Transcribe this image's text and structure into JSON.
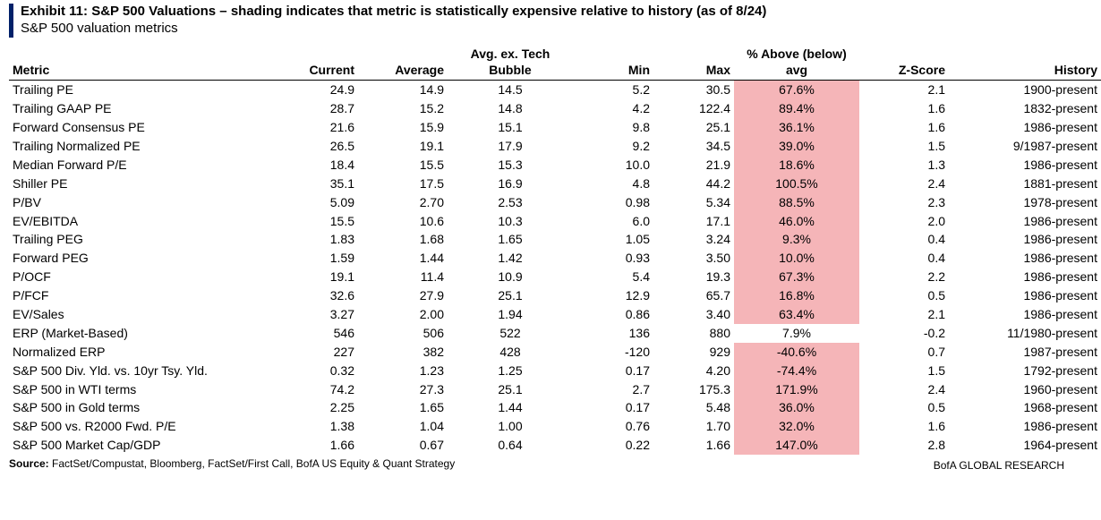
{
  "title": "Exhibit 11: S&P 500 Valuations – shading indicates that metric is statistically expensive relative to history (as of 8/24)",
  "subtitle": "S&P 500 valuation metrics",
  "columns": {
    "metric": "Metric",
    "current": "Current",
    "avg": "Average",
    "exbubble_line1": "Avg. ex. Tech",
    "exbubble_line2": "Bubble",
    "min": "Min",
    "max": "Max",
    "pctabove_line1": "% Above (below)",
    "pctabove_line2": "avg",
    "zscore": "Z-Score",
    "history": "History"
  },
  "colors": {
    "accent_bar": "#012169",
    "shaded_bg": "#f5b5b8",
    "text": "#000000",
    "background": "#ffffff"
  },
  "source_label": "Source:",
  "source_text": "FactSet/Compustat, Bloomberg, FactSet/First Call, BofA US Equity & Quant Strategy",
  "brand": "BofA GLOBAL RESEARCH",
  "rows": [
    {
      "metric": "Trailing PE",
      "current": "24.9",
      "avg": "14.9",
      "exbubble": "14.5",
      "min": "5.2",
      "max": "30.5",
      "pctabove": "67.6%",
      "pctabove_shaded": true,
      "zscore": "2.1",
      "history": "1900-present"
    },
    {
      "metric": "Trailing GAAP PE",
      "current": "28.7",
      "avg": "15.2",
      "exbubble": "14.8",
      "min": "4.2",
      "max": "122.4",
      "pctabove": "89.4%",
      "pctabove_shaded": true,
      "zscore": "1.6",
      "history": "1832-present"
    },
    {
      "metric": "Forward Consensus PE",
      "current": "21.6",
      "avg": "15.9",
      "exbubble": "15.1",
      "min": "9.8",
      "max": "25.1",
      "pctabove": "36.1%",
      "pctabove_shaded": true,
      "zscore": "1.6",
      "history": "1986-present"
    },
    {
      "metric": "Trailing Normalized PE",
      "current": "26.5",
      "avg": "19.1",
      "exbubble": "17.9",
      "min": "9.2",
      "max": "34.5",
      "pctabove": "39.0%",
      "pctabove_shaded": true,
      "zscore": "1.5",
      "history": "9/1987-present"
    },
    {
      "metric": "Median Forward P/E",
      "current": "18.4",
      "avg": "15.5",
      "exbubble": "15.3",
      "min": "10.0",
      "max": "21.9",
      "pctabove": "18.6%",
      "pctabove_shaded": true,
      "zscore": "1.3",
      "history": "1986-present"
    },
    {
      "metric": "Shiller PE",
      "current": "35.1",
      "avg": "17.5",
      "exbubble": "16.9",
      "min": "4.8",
      "max": "44.2",
      "pctabove": "100.5%",
      "pctabove_shaded": true,
      "zscore": "2.4",
      "history": "1881-present"
    },
    {
      "metric": "P/BV",
      "current": "5.09",
      "avg": "2.70",
      "exbubble": "2.53",
      "min": "0.98",
      "max": "5.34",
      "pctabove": "88.5%",
      "pctabove_shaded": true,
      "zscore": "2.3",
      "history": "1978-present"
    },
    {
      "metric": "EV/EBITDA",
      "current": "15.5",
      "avg": "10.6",
      "exbubble": "10.3",
      "min": "6.0",
      "max": "17.1",
      "pctabove": "46.0%",
      "pctabove_shaded": true,
      "zscore": "2.0",
      "history": "1986-present"
    },
    {
      "metric": "Trailing PEG",
      "current": "1.83",
      "avg": "1.68",
      "exbubble": "1.65",
      "min": "1.05",
      "max": "3.24",
      "pctabove": "9.3%",
      "pctabove_shaded": true,
      "zscore": "0.4",
      "history": "1986-present"
    },
    {
      "metric": "Forward PEG",
      "current": "1.59",
      "avg": "1.44",
      "exbubble": "1.42",
      "min": "0.93",
      "max": "3.50",
      "pctabove": "10.0%",
      "pctabove_shaded": true,
      "zscore": "0.4",
      "history": "1986-present"
    },
    {
      "metric": "P/OCF",
      "current": "19.1",
      "avg": "11.4",
      "exbubble": "10.9",
      "min": "5.4",
      "max": "19.3",
      "pctabove": "67.3%",
      "pctabove_shaded": true,
      "zscore": "2.2",
      "history": "1986-present"
    },
    {
      "metric": "P/FCF",
      "current": "32.6",
      "avg": "27.9",
      "exbubble": "25.1",
      "min": "12.9",
      "max": "65.7",
      "pctabove": "16.8%",
      "pctabove_shaded": true,
      "zscore": "0.5",
      "history": "1986-present"
    },
    {
      "metric": "EV/Sales",
      "current": "3.27",
      "avg": "2.00",
      "exbubble": "1.94",
      "min": "0.86",
      "max": "3.40",
      "pctabove": "63.4%",
      "pctabove_shaded": true,
      "zscore": "2.1",
      "history": "1986-present"
    },
    {
      "metric": "ERP (Market-Based)",
      "current": "546",
      "avg": "506",
      "exbubble": "522",
      "min": "136",
      "max": "880",
      "pctabove": "7.9%",
      "pctabove_shaded": false,
      "zscore": "-0.2",
      "history": "11/1980-present"
    },
    {
      "metric": "Normalized ERP",
      "current": "227",
      "avg": "382",
      "exbubble": "428",
      "min": "-120",
      "max": "929",
      "pctabove": "-40.6%",
      "pctabove_shaded": true,
      "zscore": "0.7",
      "history": "1987-present"
    },
    {
      "metric": "S&P 500 Div. Yld. vs. 10yr Tsy. Yld.",
      "current": "0.32",
      "avg": "1.23",
      "exbubble": "1.25",
      "min": "0.17",
      "max": "4.20",
      "pctabove": "-74.4%",
      "pctabove_shaded": true,
      "zscore": "1.5",
      "history": "1792-present"
    },
    {
      "metric": "S&P 500 in WTI terms",
      "current": "74.2",
      "avg": "27.3",
      "exbubble": "25.1",
      "min": "2.7",
      "max": "175.3",
      "pctabove": "171.9%",
      "pctabove_shaded": true,
      "zscore": "2.4",
      "history": "1960-present"
    },
    {
      "metric": "S&P 500 in Gold terms",
      "current": "2.25",
      "avg": "1.65",
      "exbubble": "1.44",
      "min": "0.17",
      "max": "5.48",
      "pctabove": "36.0%",
      "pctabove_shaded": true,
      "zscore": "0.5",
      "history": "1968-present"
    },
    {
      "metric": "S&P 500 vs. R2000 Fwd. P/E",
      "current": "1.38",
      "avg": "1.04",
      "exbubble": "1.00",
      "min": "0.76",
      "max": "1.70",
      "pctabove": "32.0%",
      "pctabove_shaded": true,
      "zscore": "1.6",
      "history": "1986-present"
    },
    {
      "metric": "S&P 500 Market Cap/GDP",
      "current": "1.66",
      "avg": "0.67",
      "exbubble": "0.64",
      "min": "0.22",
      "max": "1.66",
      "pctabove": "147.0%",
      "pctabove_shaded": true,
      "zscore": "2.8",
      "history": "1964-present"
    }
  ]
}
